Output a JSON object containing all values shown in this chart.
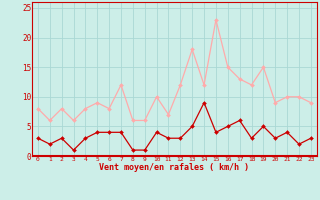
{
  "x": [
    0,
    1,
    2,
    3,
    4,
    5,
    6,
    7,
    8,
    9,
    10,
    11,
    12,
    13,
    14,
    15,
    16,
    17,
    18,
    19,
    20,
    21,
    22,
    23
  ],
  "avg_wind": [
    3,
    2,
    3,
    1,
    3,
    4,
    4,
    4,
    1,
    1,
    4,
    3,
    3,
    5,
    9,
    4,
    5,
    6,
    3,
    5,
    3,
    4,
    2,
    3
  ],
  "gust_wind": [
    8,
    6,
    8,
    6,
    8,
    9,
    8,
    12,
    6,
    6,
    10,
    7,
    12,
    18,
    12,
    23,
    15,
    13,
    12,
    15,
    9,
    10,
    10,
    9
  ],
  "avg_color": "#cc0000",
  "gust_color": "#ffaaaa",
  "bg_color": "#cceee8",
  "grid_color": "#aad8d4",
  "xlabel": "Vent moyen/en rafales ( km/h )",
  "xlabel_color": "#cc0000",
  "ylim": [
    0,
    26
  ],
  "yticks": [
    0,
    5,
    10,
    15,
    20,
    25
  ],
  "xlim": [
    -0.5,
    23.5
  ]
}
